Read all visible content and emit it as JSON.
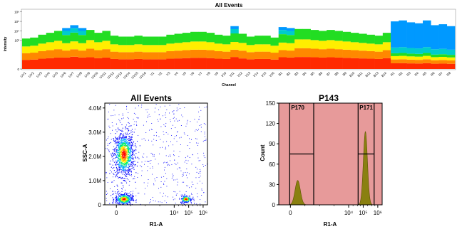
{
  "chart_data": [
    {
      "type": "heatmap",
      "title": "All Events",
      "xlabel": "Channel",
      "ylabel": "Intensity",
      "yticks": [
        "10⁶",
        "10⁵",
        "10⁴",
        "10³",
        "0"
      ],
      "channels": [
        "UV1",
        "UV2",
        "UV3",
        "UV4",
        "UV5",
        "UV6",
        "UV7",
        "UV8",
        "UV9",
        "UV10",
        "UV11",
        "UV12",
        "UV13",
        "UV14",
        "UV15",
        "UV16",
        "V1",
        "V2",
        "V3",
        "V4",
        "V5",
        "V6",
        "V7",
        "V8",
        "V9",
        "V10",
        "V11",
        "V12",
        "V13",
        "V14",
        "V15",
        "V16",
        "B1",
        "B2",
        "B3",
        "B4",
        "B5",
        "B6",
        "B7",
        "B8",
        "B9",
        "B10",
        "B11",
        "B12",
        "B13",
        "B14",
        "R1",
        "R2",
        "R3",
        "R4",
        "R5",
        "R6",
        "R7",
        "R8"
      ],
      "top_exponent": [
        3.2,
        3.3,
        3.6,
        3.8,
        4.0,
        4.3,
        4.6,
        4.3,
        4.1,
        3.8,
        4.0,
        3.5,
        3.4,
        3.4,
        3.5,
        3.4,
        3.4,
        3.4,
        3.6,
        3.7,
        3.8,
        3.9,
        3.9,
        3.8,
        3.6,
        3.5,
        4.5,
        3.7,
        3.4,
        3.5,
        3.5,
        3.3,
        4.4,
        4.3,
        4.2,
        4.2,
        4.1,
        4.0,
        4.1,
        4.0,
        3.9,
        3.8,
        3.7,
        3.6,
        3.5,
        3.8,
        5.0,
        5.1,
        4.9,
        4.8,
        5.1,
        4.6,
        4.7,
        4.5
      ],
      "color_scale": [
        "#ffffff",
        "#ff2a00",
        "#ff8800",
        "#ffee00",
        "#22dd22",
        "#00cccc",
        "#0099ff"
      ]
    },
    {
      "type": "scatter",
      "title": "All Events",
      "xlabel": "R1-A",
      "ylabel": "SSC-A",
      "yticks": [
        "4.0M",
        "3.0M",
        "2.0M",
        "1.0M",
        "0"
      ],
      "xticks": [
        "0",
        "10⁴",
        "10⁵",
        "10⁶"
      ],
      "clusters": [
        {
          "x": 0.5,
          "y": 2.1,
          "spread_x": 0.35,
          "spread_y": 0.45,
          "count": 1100
        },
        {
          "x": 0.5,
          "y": 0.25,
          "spread_x": 0.3,
          "spread_y": 0.12,
          "count": 420
        },
        {
          "x": 4.8,
          "y": 0.25,
          "spread_x": 0.2,
          "spread_y": 0.08,
          "count": 180
        }
      ],
      "ylim": [
        0,
        4.2
      ],
      "color_scale": [
        "#0000ff",
        "#00aaff",
        "#00ee66",
        "#ffee00",
        "#ff8800",
        "#ff0000"
      ]
    },
    {
      "type": "area",
      "title": "P143",
      "xlabel": "R1-A",
      "ylabel": "Count",
      "yticks": [
        "150",
        "120",
        "90",
        "60",
        "30",
        "0"
      ],
      "xticks": [
        "0",
        "10⁴",
        "10⁵",
        "10⁶"
      ],
      "ylim": [
        0,
        150
      ],
      "series": [
        {
          "peak_x": 0.5,
          "peak_y": 36,
          "width": 0.18
        },
        {
          "peak_x": 5.15,
          "peak_y": 108,
          "width": 0.14
        }
      ],
      "gates": [
        {
          "label": "P170",
          "x_start": -0.05,
          "x_end": 1.6
        },
        {
          "label": "P171",
          "x_start": 4.65,
          "x_end": 5.75
        }
      ],
      "gate_line_y": 75,
      "gate_fill": "#e79a9a",
      "peak_color": "#8a8010"
    }
  ]
}
